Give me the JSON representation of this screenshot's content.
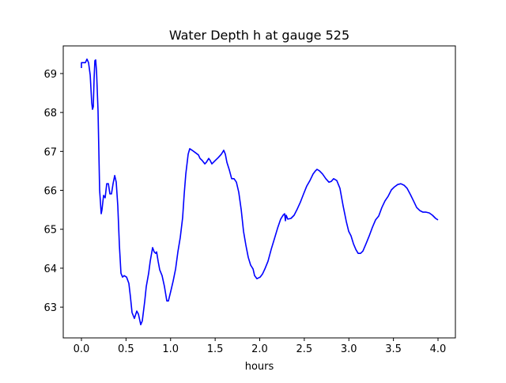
{
  "chart_data": {
    "type": "line",
    "title": "Water Depth h at gauge 525",
    "xlabel": "hours",
    "ylabel": "",
    "xlim": [
      -0.204,
      4.195
    ],
    "ylim": [
      62.21,
      69.71
    ],
    "xticks": [
      0.0,
      0.5,
      1.0,
      1.5,
      2.0,
      2.5,
      3.0,
      3.5,
      4.0
    ],
    "xtick_labels": [
      "0.0",
      "0.5",
      "1.0",
      "1.5",
      "2.0",
      "2.5",
      "3.0",
      "3.5",
      "4.0"
    ],
    "yticks": [
      63,
      64,
      65,
      66,
      67,
      68,
      69
    ],
    "ytick_labels": [
      "63",
      "64",
      "65",
      "66",
      "67",
      "68",
      "69"
    ],
    "grid": false,
    "series": [
      {
        "name": "h",
        "color": "#0000ff",
        "x": [
          0.0,
          0.0,
          0.044,
          0.062,
          0.08,
          0.098,
          0.115,
          0.124,
          0.133,
          0.142,
          0.151,
          0.16,
          0.169,
          0.186,
          0.204,
          0.222,
          0.231,
          0.248,
          0.266,
          0.284,
          0.302,
          0.319,
          0.337,
          0.355,
          0.373,
          0.39,
          0.408,
          0.426,
          0.443,
          0.461,
          0.479,
          0.506,
          0.532,
          0.55,
          0.568,
          0.594,
          0.621,
          0.639,
          0.665,
          0.683,
          0.71,
          0.727,
          0.754,
          0.772,
          0.798,
          0.816,
          0.834,
          0.843,
          0.86,
          0.878,
          0.905,
          0.931,
          0.958,
          0.976,
          1.002,
          1.029,
          1.056,
          1.082,
          1.109,
          1.135,
          1.153,
          1.171,
          1.197,
          1.215,
          1.242,
          1.277,
          1.313,
          1.33,
          1.357,
          1.384,
          1.401,
          1.428,
          1.446,
          1.463,
          1.499,
          1.534,
          1.57,
          1.596,
          1.614,
          1.632,
          1.659,
          1.685,
          1.712,
          1.738,
          1.765,
          1.792,
          1.818,
          1.845,
          1.871,
          1.898,
          1.925,
          1.942,
          1.969,
          2.004,
          2.031,
          2.058,
          2.093,
          2.129,
          2.164,
          2.2,
          2.235,
          2.262,
          2.279,
          2.288,
          2.297,
          2.315,
          2.35,
          2.386,
          2.421,
          2.457,
          2.492,
          2.528,
          2.563,
          2.599,
          2.625,
          2.643,
          2.67,
          2.705,
          2.741,
          2.776,
          2.803,
          2.829,
          2.865,
          2.9,
          2.936,
          2.971,
          2.998,
          3.024,
          3.051,
          3.078,
          3.104,
          3.131,
          3.157,
          3.193,
          3.228,
          3.264,
          3.299,
          3.335,
          3.37,
          3.406,
          3.441,
          3.477,
          3.512,
          3.548,
          3.583,
          3.619,
          3.654,
          3.69,
          3.725,
          3.76,
          3.796,
          3.831,
          3.867,
          3.902,
          3.938,
          3.973,
          4.0
        ],
        "y": [
          69.14,
          69.28,
          69.28,
          69.37,
          69.28,
          68.96,
          68.25,
          68.08,
          68.15,
          68.86,
          69.33,
          69.35,
          69.06,
          68.04,
          66.01,
          65.4,
          65.5,
          65.87,
          65.81,
          66.17,
          66.17,
          65.91,
          65.91,
          66.17,
          66.38,
          66.21,
          65.6,
          64.59,
          63.87,
          63.77,
          63.81,
          63.77,
          63.61,
          63.26,
          62.86,
          62.71,
          62.9,
          62.82,
          62.55,
          62.65,
          63.16,
          63.53,
          63.87,
          64.18,
          64.53,
          64.42,
          64.38,
          64.42,
          64.18,
          63.96,
          63.81,
          63.53,
          63.16,
          63.16,
          63.41,
          63.67,
          63.98,
          64.42,
          64.79,
          65.3,
          65.91,
          66.42,
          66.93,
          67.07,
          67.03,
          66.97,
          66.91,
          66.82,
          66.76,
          66.68,
          66.72,
          66.82,
          66.76,
          66.68,
          66.76,
          66.84,
          66.93,
          67.03,
          66.93,
          66.72,
          66.52,
          66.3,
          66.3,
          66.21,
          65.95,
          65.5,
          64.95,
          64.59,
          64.28,
          64.08,
          63.98,
          63.81,
          63.73,
          63.77,
          63.85,
          63.98,
          64.18,
          64.49,
          64.75,
          65.03,
          65.26,
          65.36,
          65.4,
          65.22,
          65.36,
          65.26,
          65.28,
          65.36,
          65.52,
          65.7,
          65.91,
          66.11,
          66.25,
          66.42,
          66.5,
          66.54,
          66.5,
          66.42,
          66.3,
          66.21,
          66.23,
          66.3,
          66.25,
          66.05,
          65.6,
          65.2,
          64.95,
          64.83,
          64.63,
          64.48,
          64.38,
          64.38,
          64.44,
          64.63,
          64.83,
          65.05,
          65.24,
          65.34,
          65.56,
          65.73,
          65.85,
          66.01,
          66.09,
          66.15,
          66.17,
          66.13,
          66.05,
          65.89,
          65.73,
          65.56,
          65.48,
          65.44,
          65.44,
          65.42,
          65.36,
          65.28,
          65.24
        ]
      }
    ]
  }
}
